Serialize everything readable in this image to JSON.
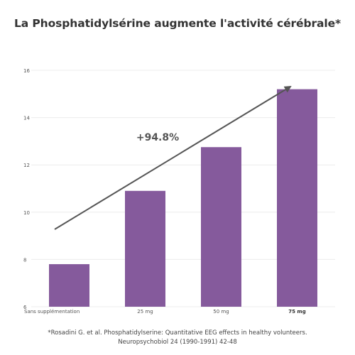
{
  "chart_data": {
    "type": "bar",
    "title": "La Phosphatidylsérine augmente l'activité cérébrale*",
    "categories": [
      "Sans supplémentation",
      "25 mg",
      "50 mg",
      "75 mg"
    ],
    "highlighted_category": "75 mg",
    "values": [
      7.8,
      10.9,
      12.75,
      15.2
    ],
    "ylim": [
      6,
      16
    ],
    "yticks": [
      6,
      8,
      10,
      12,
      14,
      16
    ],
    "grid": true,
    "bar_color": "#855a9c",
    "annotation": {
      "text": "+94.8%",
      "arrow": true
    }
  },
  "footnote": {
    "line1": "*Rosadini G. et al. Phosphatidylserine: Quantitative EEG effects in healthy volunteers.",
    "line2": "Neuropsychobiol 24 (1990-1991) 42-48"
  }
}
